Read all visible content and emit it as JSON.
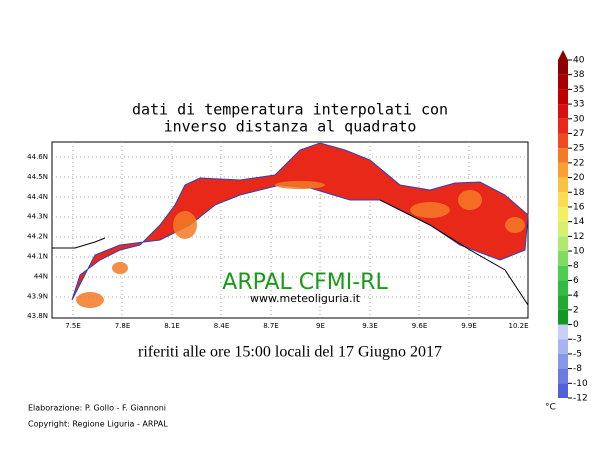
{
  "title": [
    "dati di temperatura interpolati con",
    "inverso distanza al quadrato"
  ],
  "lon_ticks": [
    "7.5E",
    "7.8E",
    "8.1E",
    "8.4E",
    "8.7E",
    "9E",
    "9.3E",
    "9.6E",
    "9.9E",
    "10.2E"
  ],
  "lat_ticks": [
    "44.6N",
    "44.5N",
    "44.4N",
    "44.3N",
    "44.2N",
    "44.1N",
    "44N",
    "43.9N",
    "43.8N"
  ],
  "watermark": "ARPAL CFMI-RL",
  "website": "www.meteoliguria.it",
  "caption": "riferiti alle ore 15:00 locali del 17 Giugno 2017",
  "credits": [
    "Elaborazione: P. Gollo - F. Giannoni",
    "Copyright: Regione Liguria - ARPAL"
  ],
  "unit": "°C",
  "colorbar": [
    {
      "label": "40",
      "color": "#8b0000"
    },
    {
      "label": "38",
      "color": "#a80000"
    },
    {
      "label": "35",
      "color": "#c00000"
    },
    {
      "label": "33",
      "color": "#d81010"
    },
    {
      "label": "30",
      "color": "#e82818"
    },
    {
      "label": "27",
      "color": "#f04a20"
    },
    {
      "label": "25",
      "color": "#f57a28"
    },
    {
      "label": "22",
      "color": "#f8a030"
    },
    {
      "label": "20",
      "color": "#fac040"
    },
    {
      "label": "18",
      "color": "#fcdc50"
    },
    {
      "label": "16",
      "color": "#f0f060"
    },
    {
      "label": "14",
      "color": "#d8f070"
    },
    {
      "label": "12",
      "color": "#b0e870"
    },
    {
      "label": "10",
      "color": "#80dc60"
    },
    {
      "label": "8",
      "color": "#50cc50"
    },
    {
      "label": "6",
      "color": "#30bc40"
    },
    {
      "label": "4",
      "color": "#20a830"
    },
    {
      "label": "2",
      "color": "#109820"
    },
    {
      "label": "0",
      "color": "#c8d0f8"
    },
    {
      "label": "-3",
      "color": "#a8b4f0"
    },
    {
      "label": "-5",
      "color": "#8898e8"
    },
    {
      "label": "-8",
      "color": "#6a7ce0"
    },
    {
      "label": "-10",
      "color": "#5060d8"
    },
    {
      "label": "-12",
      "color": "#3848d0"
    }
  ]
}
